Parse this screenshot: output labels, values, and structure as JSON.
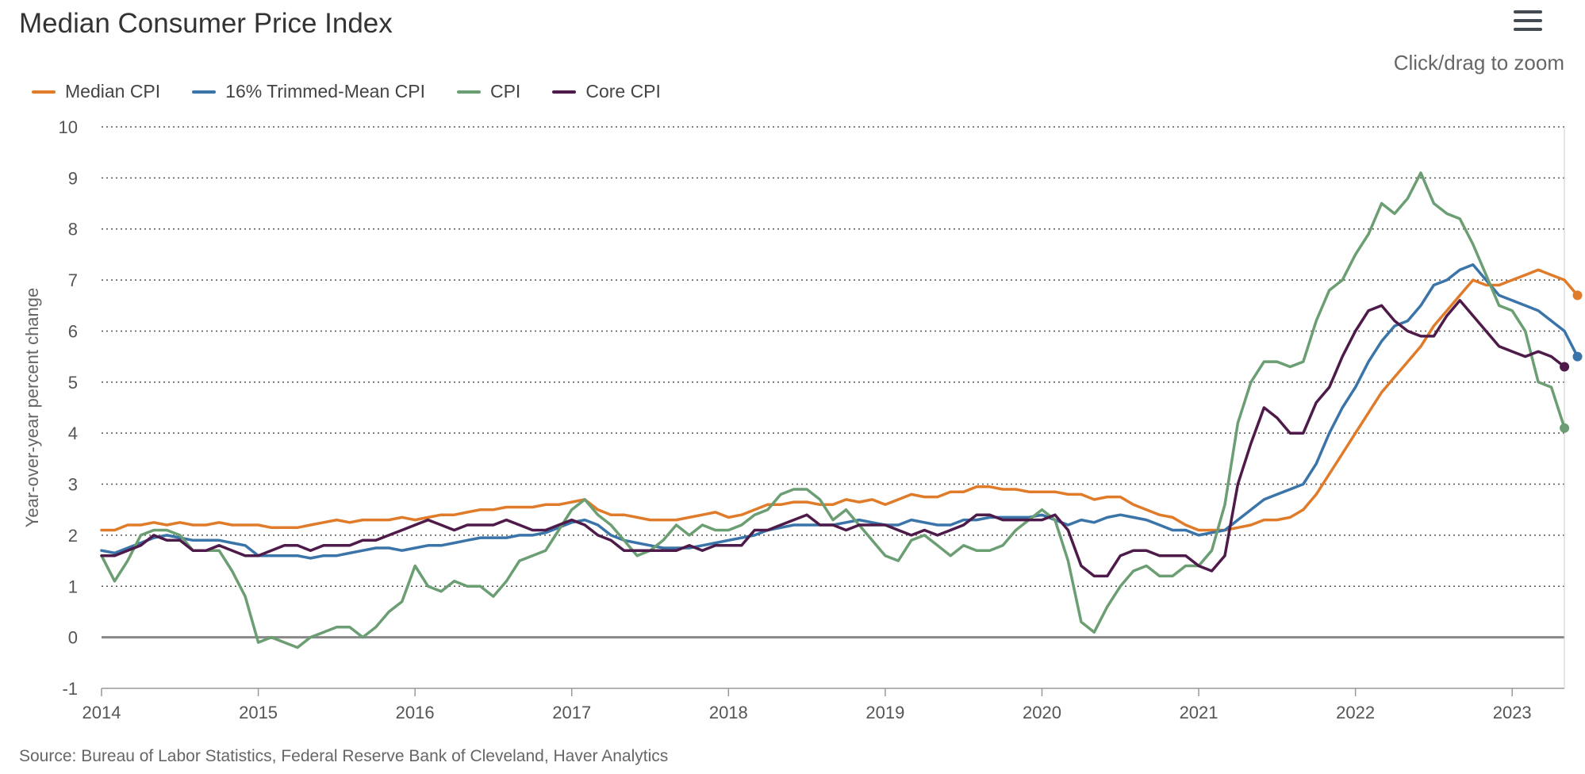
{
  "header": {
    "title": "Median Consumer Price Index",
    "zoom_hint": "Click/drag to zoom",
    "menu_icon": "hamburger-menu-icon"
  },
  "footer": {
    "source": "Source: Bureau of Labor Statistics, Federal Reserve Bank of Cleveland, Haver Analytics"
  },
  "chart_data": {
    "type": "line",
    "title": "Median Consumer Price Index",
    "xlabel": "",
    "ylabel": "Year-over-year percent change",
    "xlim": [
      2014.0,
      2023.333
    ],
    "ylim": [
      -1,
      10
    ],
    "yticks": [
      -1,
      0,
      1,
      2,
      3,
      4,
      5,
      6,
      7,
      8,
      9,
      10
    ],
    "xticks": [
      "2014",
      "2015",
      "2016",
      "2017",
      "2018",
      "2019",
      "2020",
      "2021",
      "2022",
      "2023"
    ],
    "grid": "horizontal dotted",
    "zero_line": true,
    "legend_position": "top-left",
    "x_start": "2014-01",
    "x_frequency": "monthly",
    "series": [
      {
        "name": "Median CPI",
        "color": "#e07b2a",
        "values": [
          2.1,
          2.1,
          2.2,
          2.2,
          2.25,
          2.2,
          2.25,
          2.2,
          2.2,
          2.25,
          2.2,
          2.2,
          2.2,
          2.15,
          2.15,
          2.15,
          2.2,
          2.25,
          2.3,
          2.25,
          2.3,
          2.3,
          2.3,
          2.35,
          2.3,
          2.35,
          2.4,
          2.4,
          2.45,
          2.5,
          2.5,
          2.55,
          2.55,
          2.55,
          2.6,
          2.6,
          2.65,
          2.7,
          2.5,
          2.4,
          2.4,
          2.35,
          2.3,
          2.3,
          2.3,
          2.35,
          2.4,
          2.45,
          2.35,
          2.4,
          2.5,
          2.6,
          2.6,
          2.65,
          2.65,
          2.6,
          2.6,
          2.7,
          2.65,
          2.7,
          2.6,
          2.7,
          2.8,
          2.75,
          2.75,
          2.85,
          2.85,
          2.95,
          2.95,
          2.9,
          2.9,
          2.85,
          2.85,
          2.85,
          2.8,
          2.8,
          2.7,
          2.75,
          2.75,
          2.6,
          2.5,
          2.4,
          2.35,
          2.2,
          2.1,
          2.1,
          2.1,
          2.15,
          2.2,
          2.3,
          2.3,
          2.35,
          2.5,
          2.8,
          3.2,
          3.6,
          4.0,
          4.4,
          4.8,
          5.1,
          5.4,
          5.7,
          6.1,
          6.4,
          6.7,
          7.0,
          6.9,
          6.9,
          7.0,
          7.1,
          7.2,
          7.1,
          7.0,
          6.7
        ]
      },
      {
        "name": "16% Trimmed-Mean CPI",
        "color": "#3a74a8",
        "values": [
          1.7,
          1.65,
          1.75,
          1.85,
          1.95,
          2.0,
          1.95,
          1.9,
          1.9,
          1.9,
          1.85,
          1.8,
          1.6,
          1.6,
          1.6,
          1.6,
          1.55,
          1.6,
          1.6,
          1.65,
          1.7,
          1.75,
          1.75,
          1.7,
          1.75,
          1.8,
          1.8,
          1.85,
          1.9,
          1.95,
          1.95,
          1.95,
          2.0,
          2.0,
          2.05,
          2.15,
          2.25,
          2.3,
          2.2,
          2.0,
          1.9,
          1.85,
          1.8,
          1.75,
          1.75,
          1.75,
          1.8,
          1.85,
          1.9,
          1.95,
          2.0,
          2.1,
          2.15,
          2.2,
          2.2,
          2.2,
          2.2,
          2.25,
          2.3,
          2.25,
          2.2,
          2.2,
          2.3,
          2.25,
          2.2,
          2.2,
          2.3,
          2.3,
          2.35,
          2.35,
          2.35,
          2.35,
          2.4,
          2.3,
          2.2,
          2.3,
          2.25,
          2.35,
          2.4,
          2.35,
          2.3,
          2.2,
          2.1,
          2.1,
          2.0,
          2.05,
          2.1,
          2.3,
          2.5,
          2.7,
          2.8,
          2.9,
          3.0,
          3.4,
          4.0,
          4.5,
          4.9,
          5.4,
          5.8,
          6.1,
          6.2,
          6.5,
          6.9,
          7.0,
          7.2,
          7.3,
          7.0,
          6.7,
          6.6,
          6.5,
          6.4,
          6.2,
          6.0,
          5.5
        ]
      },
      {
        "name": "CPI",
        "color": "#6b9e72",
        "values": [
          1.6,
          1.1,
          1.5,
          2.0,
          2.1,
          2.1,
          2.0,
          1.7,
          1.7,
          1.7,
          1.3,
          0.8,
          -0.1,
          0.0,
          -0.1,
          -0.2,
          0.0,
          0.1,
          0.2,
          0.2,
          0.0,
          0.2,
          0.5,
          0.7,
          1.4,
          1.0,
          0.9,
          1.1,
          1.0,
          1.0,
          0.8,
          1.1,
          1.5,
          1.6,
          1.7,
          2.1,
          2.5,
          2.7,
          2.4,
          2.2,
          1.9,
          1.6,
          1.7,
          1.9,
          2.2,
          2.0,
          2.2,
          2.1,
          2.1,
          2.2,
          2.4,
          2.5,
          2.8,
          2.9,
          2.9,
          2.7,
          2.3,
          2.5,
          2.2,
          1.9,
          1.6,
          1.5,
          1.9,
          2.0,
          1.8,
          1.6,
          1.8,
          1.7,
          1.7,
          1.8,
          2.1,
          2.3,
          2.5,
          2.3,
          1.5,
          0.3,
          0.1,
          0.6,
          1.0,
          1.3,
          1.4,
          1.2,
          1.2,
          1.4,
          1.4,
          1.7,
          2.6,
          4.2,
          5.0,
          5.4,
          5.4,
          5.3,
          5.4,
          6.2,
          6.8,
          7.0,
          7.5,
          7.9,
          8.5,
          8.3,
          8.6,
          9.1,
          8.5,
          8.3,
          8.2,
          7.7,
          7.1,
          6.5,
          6.4,
          6.0,
          5.0,
          4.9,
          4.1
        ]
      },
      {
        "name": "Core CPI",
        "color": "#4e1a4a",
        "values": [
          1.6,
          1.6,
          1.7,
          1.8,
          2.0,
          1.9,
          1.9,
          1.7,
          1.7,
          1.8,
          1.7,
          1.6,
          1.6,
          1.7,
          1.8,
          1.8,
          1.7,
          1.8,
          1.8,
          1.8,
          1.9,
          1.9,
          2.0,
          2.1,
          2.2,
          2.3,
          2.2,
          2.1,
          2.2,
          2.2,
          2.2,
          2.3,
          2.2,
          2.1,
          2.1,
          2.2,
          2.3,
          2.2,
          2.0,
          1.9,
          1.7,
          1.7,
          1.7,
          1.7,
          1.7,
          1.8,
          1.7,
          1.8,
          1.8,
          1.8,
          2.1,
          2.1,
          2.2,
          2.3,
          2.4,
          2.2,
          2.2,
          2.1,
          2.2,
          2.2,
          2.2,
          2.1,
          2.0,
          2.1,
          2.0,
          2.1,
          2.2,
          2.4,
          2.4,
          2.3,
          2.3,
          2.3,
          2.3,
          2.4,
          2.1,
          1.4,
          1.2,
          1.2,
          1.6,
          1.7,
          1.7,
          1.6,
          1.6,
          1.6,
          1.4,
          1.3,
          1.6,
          3.0,
          3.8,
          4.5,
          4.3,
          4.0,
          4.0,
          4.6,
          4.9,
          5.5,
          6.0,
          6.4,
          6.5,
          6.2,
          6.0,
          5.9,
          5.9,
          6.3,
          6.6,
          6.3,
          6.0,
          5.7,
          5.6,
          5.5,
          5.6,
          5.5,
          5.3
        ]
      }
    ]
  }
}
